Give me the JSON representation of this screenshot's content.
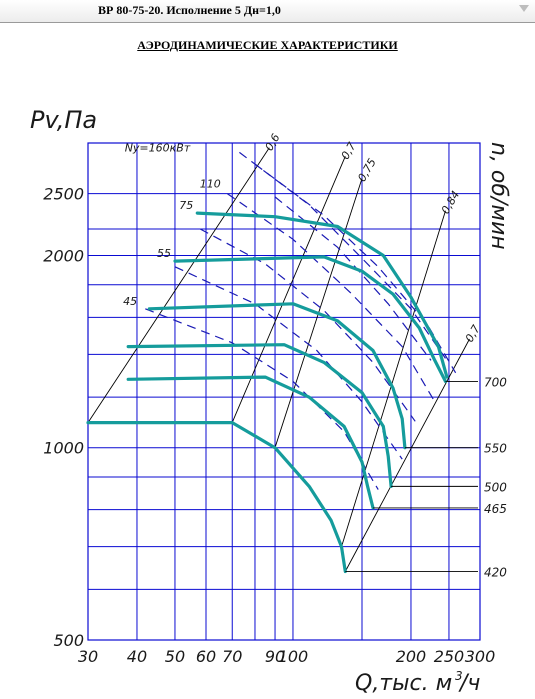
{
  "header": {
    "title": "ВР 80-75-20. Исполнение 5 Дн=1,0"
  },
  "subtitle": "АЭРОДИНАМИЧЕСКИЕ ХАРАКТЕРИСТИКИ",
  "colors": {
    "grid": "#0a0ad2",
    "curve": "#159c9c",
    "dashed": "#1a1ab4",
    "ink": "#000000",
    "label": "#1a1a1a"
  },
  "chart_data": {
    "type": "line",
    "x_scale": "log",
    "y_scale": "log",
    "xlim": [
      30,
      300
    ],
    "ylim": [
      500,
      3000
    ],
    "ylabel": "Pv,Па",
    "xlabel": "Q,тыс. м³/ч",
    "xlabel_parts": [
      "Q,тыс. м",
      "3",
      "/ч"
    ],
    "rlabel": "n, об/мин",
    "grid": true,
    "x_ticks": [
      {
        "v": 30,
        "label": "30"
      },
      {
        "v": 40,
        "label": "40"
      },
      {
        "v": 50,
        "label": "50"
      },
      {
        "v": 60,
        "label": "60"
      },
      {
        "v": 70,
        "label": "70"
      },
      {
        "v": 90,
        "label": "90"
      },
      {
        "v": 100,
        "label": "100"
      },
      {
        "v": 200,
        "label": "200"
      },
      {
        "v": 250,
        "label": "250"
      },
      {
        "v": 300,
        "label": "300"
      }
    ],
    "x_grid": [
      30,
      40,
      50,
      60,
      70,
      80,
      90,
      100,
      150,
      200,
      250,
      300
    ],
    "y_ticks": [
      {
        "v": 500,
        "label": "500"
      },
      {
        "v": 1000,
        "label": "1000"
      },
      {
        "v": 2000,
        "label": "2000"
      },
      {
        "v": 2500,
        "label": "2500"
      }
    ],
    "y_grid": [
      500,
      600,
      700,
      800,
      900,
      1000,
      1200,
      1400,
      1600,
      1800,
      2000,
      2200,
      2500,
      3000
    ],
    "series": [
      {
        "name": "420",
        "points": [
          [
            30,
            1095
          ],
          [
            70,
            1095
          ],
          [
            90,
            1000
          ],
          [
            110,
            870
          ],
          [
            125,
            770
          ],
          [
            133,
            700
          ],
          [
            136,
            640
          ]
        ]
      },
      {
        "name": "465",
        "points": [
          [
            38,
            1280
          ],
          [
            85,
            1290
          ],
          [
            110,
            1200
          ],
          [
            135,
            1080
          ],
          [
            150,
            950
          ],
          [
            155,
            870
          ],
          [
            160,
            805
          ]
        ]
      },
      {
        "name": "500",
        "points": [
          [
            38,
            1440
          ],
          [
            95,
            1450
          ],
          [
            120,
            1360
          ],
          [
            150,
            1220
          ],
          [
            170,
            1080
          ],
          [
            175,
            970
          ],
          [
            178,
            870
          ]
        ]
      },
      {
        "name": "550",
        "points": [
          [
            43,
            1650
          ],
          [
            100,
            1680
          ],
          [
            130,
            1580
          ],
          [
            160,
            1420
          ],
          [
            180,
            1240
          ],
          [
            190,
            1110
          ],
          [
            193,
            1000
          ]
        ]
      },
      {
        "name": "700",
        "points": [
          [
            50,
            1960
          ],
          [
            120,
            1990
          ],
          [
            150,
            1890
          ],
          [
            180,
            1740
          ],
          [
            210,
            1540
          ],
          [
            230,
            1370
          ],
          [
            245,
            1270
          ]
        ]
      },
      {
        "name": "",
        "points": [
          [
            57,
            2330
          ],
          [
            90,
            2300
          ],
          [
            130,
            2220
          ],
          [
            170,
            2000
          ],
          [
            200,
            1720
          ],
          [
            235,
            1440
          ],
          [
            247,
            1290
          ]
        ]
      }
    ],
    "dashed_lines": [
      {
        "name": "Ny=160кВт",
        "points": [
          [
            73,
            2900
          ],
          [
            110,
            2400
          ],
          [
            150,
            1980
          ],
          [
            200,
            1650
          ],
          [
            245,
            1380
          ]
        ]
      },
      {
        "name": "110",
        "points": [
          [
            68,
            2500
          ],
          [
            100,
            2120
          ],
          [
            140,
            1750
          ],
          [
            190,
            1440
          ],
          [
            230,
            1180
          ]
        ]
      },
      {
        "name": "75",
        "points": [
          [
            58,
            2200
          ],
          [
            85,
            1940
          ],
          [
            120,
            1640
          ],
          [
            160,
            1360
          ],
          [
            205,
            1100
          ]
        ]
      },
      {
        "name": "55",
        "points": [
          [
            50,
            1920
          ],
          [
            80,
            1680
          ],
          [
            115,
            1420
          ],
          [
            150,
            1180
          ],
          [
            190,
            960
          ]
        ]
      },
      {
        "name": "45",
        "points": [
          [
            42,
            1650
          ],
          [
            70,
            1460
          ],
          [
            100,
            1270
          ],
          [
            135,
            1060
          ],
          [
            165,
            860
          ]
        ]
      },
      {
        "name": "",
        "points": [
          [
            80,
            2780
          ],
          [
            120,
            2310
          ],
          [
            165,
            1920
          ],
          [
            220,
            1560
          ],
          [
            260,
            1310
          ]
        ]
      },
      {
        "name": "",
        "points": [
          [
            90,
            2470
          ],
          [
            130,
            2060
          ],
          [
            175,
            1680
          ],
          [
            225,
            1370
          ]
        ]
      }
    ],
    "efficiency_lines": [
      {
        "name": "0,6",
        "points": [
          [
            30,
            1095
          ],
          [
            87,
            2950
          ]
        ]
      },
      {
        "name": "0,7",
        "points": [
          [
            70,
            1095
          ],
          [
            136,
            2860
          ]
        ]
      },
      {
        "name": "0,75",
        "points": [
          [
            90,
            1000
          ],
          [
            150,
            2640
          ]
        ]
      },
      {
        "name": "0,84",
        "points": [
          [
            133,
            700
          ],
          [
            245,
            2350
          ]
        ]
      },
      {
        "name": "0,7",
        "points": [
          [
            136,
            640
          ],
          [
            282,
            1480
          ]
        ]
      }
    ],
    "pressure_lines": [
      {
        "name": "0,6",
        "points": [
          [
            30,
            1095
          ],
          [
            87,
            2950
          ]
        ]
      }
    ],
    "rpm_labels": [
      {
        "label": "700",
        "y": 1270,
        "lead_from": 245
      },
      {
        "label": "550",
        "y": 1000,
        "lead_from": 193
      },
      {
        "label": "500",
        "y": 870,
        "lead_from": 178
      },
      {
        "label": "465",
        "y": 805,
        "lead_from": 160
      },
      {
        "label": "420",
        "y": 640,
        "lead_from": 136
      }
    ],
    "left_labels": [
      {
        "label": "75",
        "x": 57,
        "y": 2330
      },
      {
        "label": "55",
        "x": 50,
        "y": 1960
      },
      {
        "label": "45",
        "x": 41,
        "y": 1650
      },
      {
        "label": "110",
        "x": 67,
        "y": 2520
      },
      {
        "label": "Ny=160кВт",
        "x": 56,
        "y": 2870
      }
    ]
  }
}
